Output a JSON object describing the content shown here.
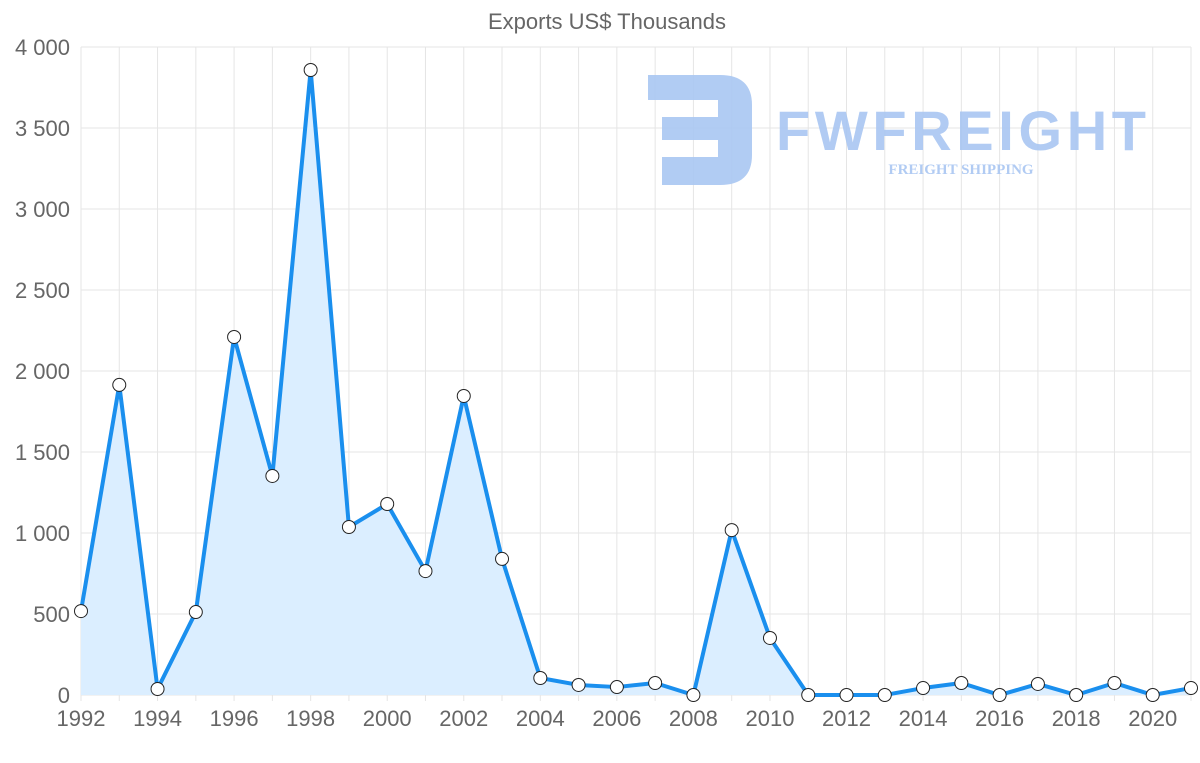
{
  "chart_data": {
    "type": "area",
    "title": "Exports US$ Thousands",
    "xlabel": "",
    "ylabel": "",
    "x": [
      1992,
      1993,
      1994,
      1995,
      1996,
      1997,
      1998,
      1999,
      2000,
      2001,
      2002,
      2003,
      2004,
      2005,
      2006,
      2007,
      2008,
      2009,
      2010,
      2011,
      2012,
      2013,
      2014,
      2015,
      2016,
      2017,
      2018,
      2019,
      2020,
      2021
    ],
    "values": [
      518,
      1914,
      37,
      512,
      2210,
      1352,
      3858,
      1037,
      1179,
      765,
      1846,
      840,
      105,
      62,
      49,
      74,
      0,
      1018,
      352,
      0,
      0,
      0,
      43,
      74,
      0,
      68,
      0,
      74,
      0,
      43
    ],
    "ylim": [
      0,
      4000
    ],
    "yticks": [
      0,
      500,
      1000,
      1500,
      2000,
      2500,
      3000,
      3500,
      4000
    ],
    "ytick_labels": [
      "0",
      "500",
      "1 000",
      "1 500",
      "2 000",
      "2 500",
      "3 000",
      "3 500",
      "4 000"
    ],
    "xticks": [
      1992,
      1994,
      1996,
      1998,
      2000,
      2002,
      2004,
      2006,
      2008,
      2010,
      2012,
      2014,
      2016,
      2018,
      2020
    ],
    "xtick_labels": [
      "1992",
      "1994",
      "1996",
      "1998",
      "2000",
      "2002",
      "2004",
      "2006",
      "2008",
      "2010",
      "2012",
      "2014",
      "2016",
      "2018",
      "2020"
    ],
    "grid": true,
    "line_color": "#1a8fee",
    "fill_color": "#dbeeff"
  },
  "watermark": {
    "brand": "FWFREIGHT",
    "tagline": "FREIGHT SHIPPING",
    "color": "#a9c6f2"
  }
}
